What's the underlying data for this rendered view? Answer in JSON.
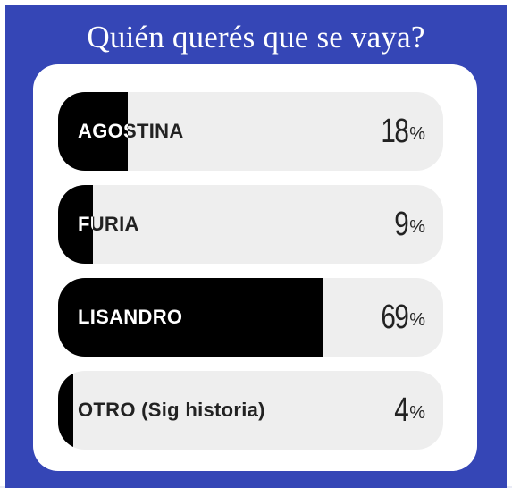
{
  "poll": {
    "question": "Quién querés que se vaya?",
    "options": [
      {
        "label": "AGOSTINA",
        "percent_value": 18,
        "percent": "18",
        "sign": "%"
      },
      {
        "label": "FURIA",
        "percent_value": 9,
        "percent": "9",
        "sign": "%"
      },
      {
        "label": "LISANDRO",
        "percent_value": 69,
        "percent": "69",
        "sign": "%"
      },
      {
        "label": "OTRO (Sig historia)",
        "percent_value": 4,
        "percent": "4",
        "sign": "%"
      }
    ]
  },
  "colors": {
    "background": "#3546b6",
    "card": "#ffffff",
    "option_track": "#eeeeee",
    "option_fill": "#000000"
  }
}
